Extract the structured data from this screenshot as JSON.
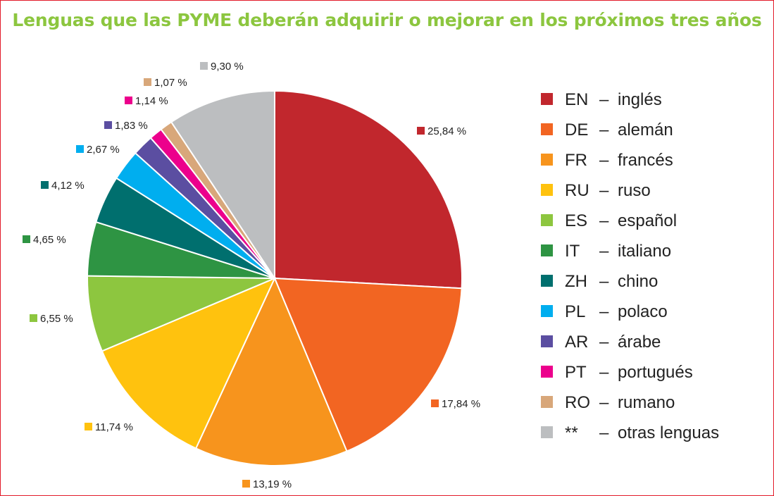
{
  "chart_data": {
    "type": "pie",
    "title": "Lenguas que las PYME deberán adquirir o mejorar en los próximos tres años",
    "start_angle_deg": 0,
    "direction": "clockwise",
    "legend_position": "right",
    "slices": [
      {
        "code": "EN",
        "name": "inglés",
        "label": "25,84 %",
        "value": 25.84,
        "color": "#c1272d"
      },
      {
        "code": "DE",
        "name": "alemán",
        "label": "17,84 %",
        "value": 17.84,
        "color": "#f26522"
      },
      {
        "code": "FR",
        "name": "francés",
        "label": "13,19 %",
        "value": 13.19,
        "color": "#f7941d"
      },
      {
        "code": "RU",
        "name": "ruso",
        "label": "11,74 %",
        "value": 11.74,
        "color": "#ffc20e"
      },
      {
        "code": "ES",
        "name": "español",
        "label": "6,55 %",
        "value": 6.55,
        "color": "#8dc63f"
      },
      {
        "code": "IT",
        "name": "italiano",
        "label": "4,65 %",
        "value": 4.65,
        "color": "#2e9443"
      },
      {
        "code": "ZH",
        "name": "chino",
        "label": "4,12 %",
        "value": 4.12,
        "color": "#006f6e"
      },
      {
        "code": "PL",
        "name": "polaco",
        "label": "2,67 %",
        "value": 2.67,
        "color": "#00aeef"
      },
      {
        "code": "AR",
        "name": "árabe",
        "label": "1,83 %",
        "value": 1.83,
        "color": "#5b4ea1"
      },
      {
        "code": "PT",
        "name": "portugués",
        "label": "1,14 %",
        "value": 1.14,
        "color": "#ec008c"
      },
      {
        "code": "RO",
        "name": "rumano",
        "label": "1,07 %",
        "value": 1.07,
        "color": "#d8a77a"
      },
      {
        "code": "**",
        "name": "otras lenguas",
        "label": "9,30 %",
        "value": 9.3,
        "color": "#bcbec0"
      }
    ]
  }
}
